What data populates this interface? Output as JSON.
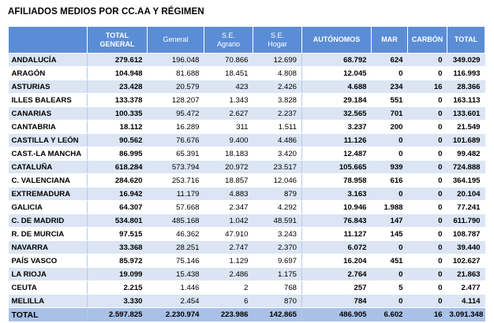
{
  "title": "AFILIADOS MEDIOS POR CC.AA Y RÉGIMEN",
  "headers": [
    "",
    "TOTAL\nGENERAL",
    "General",
    "S.E.\nAgrario",
    "S.E.\nHogar",
    "AUTÓNOMOS",
    "MAR",
    "CARBÓN",
    "TOTAL"
  ],
  "rows": [
    [
      "ANDALUCÍA",
      "279.612",
      "196.048",
      "70.866",
      "12.699",
      "68.792",
      "624",
      "0",
      "349.029"
    ],
    [
      "ARAGÓN",
      "104.948",
      "81.688",
      "18.451",
      "4.808",
      "12.045",
      "0",
      "0",
      "116.993"
    ],
    [
      "ASTURIAS",
      "23.428",
      "20.579",
      "423",
      "2.426",
      "4.688",
      "234",
      "16",
      "28.366"
    ],
    [
      "ILLES BALEARS",
      "133.378",
      "128.207",
      "1.343",
      "3.828",
      "29.184",
      "551",
      "0",
      "163.113"
    ],
    [
      "CANARIAS",
      "100.335",
      "95.472",
      "2.627",
      "2.237",
      "32.565",
      "701",
      "0",
      "133.601"
    ],
    [
      "CANTABRIA",
      "18.112",
      "16.289",
      "311",
      "1.511",
      "3.237",
      "200",
      "0",
      "21.549"
    ],
    [
      "CASTILLA Y LEÓN",
      "90.562",
      "76.676",
      "9.400",
      "4.486",
      "11.126",
      "0",
      "0",
      "101.689"
    ],
    [
      "CAST.-LA MANCHA",
      "86.995",
      "65.391",
      "18.183",
      "3.420",
      "12.487",
      "0",
      "0",
      "99.482"
    ],
    [
      "CATALUÑA",
      "618.284",
      "573.794",
      "20.972",
      "23.517",
      "105.665",
      "939",
      "0",
      "724.888"
    ],
    [
      "C. VALENCIANA",
      "284.620",
      "253.716",
      "18.857",
      "12.046",
      "78.958",
      "616",
      "0",
      "364.195"
    ],
    [
      "EXTREMADURA",
      "16.942",
      "11.179",
      "4.883",
      "879",
      "3.163",
      "0",
      "0",
      "20.104"
    ],
    [
      "GALICIA",
      "64.307",
      "57.668",
      "2.347",
      "4.292",
      "10.946",
      "1.988",
      "0",
      "77.241"
    ],
    [
      "C. DE MADRID",
      "534.801",
      "485.168",
      "1.042",
      "48.591",
      "76.843",
      "147",
      "0",
      "611.790"
    ],
    [
      "R. DE MURCIA",
      "97.515",
      "46.362",
      "47.910",
      "3.243",
      "11.127",
      "145",
      "0",
      "108.787"
    ],
    [
      "NAVARRA",
      "33.368",
      "28.251",
      "2.747",
      "2.370",
      "6.072",
      "0",
      "0",
      "39.440"
    ],
    [
      "PAÍS VASCO",
      "85.972",
      "75.146",
      "1.129",
      "9.697",
      "16.204",
      "451",
      "0",
      "102.627"
    ],
    [
      "LA RIOJA",
      "19.099",
      "15.438",
      "2.486",
      "1.175",
      "2.764",
      "0",
      "0",
      "21.863"
    ],
    [
      "CEUTA",
      "2.215",
      "1.446",
      "2",
      "768",
      "257",
      "5",
      "0",
      "2.477"
    ],
    [
      "MELILLA",
      "3.330",
      "2.454",
      "6",
      "870",
      "784",
      "0",
      "0",
      "4.114"
    ]
  ],
  "total": [
    "TOTAL",
    "2.597.825",
    "2.230.974",
    "223.986",
    "142.865",
    "486.905",
    "6.602",
    "16",
    "3.091.348"
  ]
}
